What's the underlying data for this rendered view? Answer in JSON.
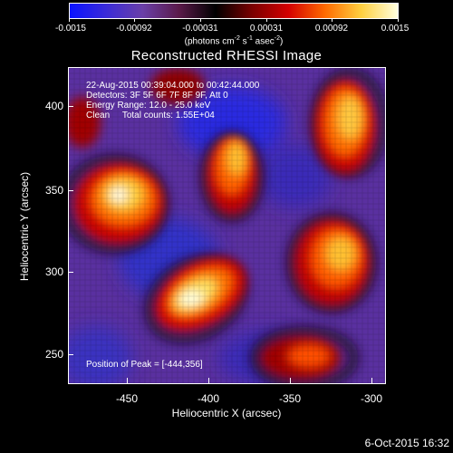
{
  "colorbar": {
    "ticks": [
      "-0.0015",
      "-0.00092",
      "-0.00031",
      "0.00031",
      "0.00092",
      "0.0015"
    ],
    "unit_prefix": "(photons cm",
    "unit_exp1": "-2",
    "unit_mid1": " s",
    "unit_exp2": "-1",
    "unit_mid2": " asec",
    "unit_exp3": "-2",
    "unit_suffix": ")",
    "colors": [
      "#0a12ff",
      "#3a2bd8",
      "#6a3fa8",
      "#5a1a4a",
      "#000000",
      "#7a0000",
      "#d40000",
      "#ff6a00",
      "#ffd040",
      "#ffffe0"
    ]
  },
  "title": "Reconstructed RHESSI Image",
  "annotations": {
    "time_range": "22-Aug-2015 00:39:04.000 to 00:42:44.000",
    "detectors": "Detectors: 3F 5F 6F 7F 8F 9F, Att 0",
    "energy": "Energy Range: 12.0 - 25.0 keV",
    "clean": "Clean     Total counts: 1.55E+04",
    "peak": "Position of Peak = [-444,356]"
  },
  "axes": {
    "xlabel": "Heliocentric X (arcsec)",
    "ylabel": "Heliocentric Y (arcsec)",
    "xticks": [
      "-450",
      "-400",
      "-350",
      "-300"
    ],
    "yticks": [
      "400",
      "350",
      "300",
      "250"
    ],
    "xrange": [
      -480,
      -290
    ],
    "yrange": [
      230,
      425
    ]
  },
  "timestamp": "6-Oct-2015 16:32"
}
